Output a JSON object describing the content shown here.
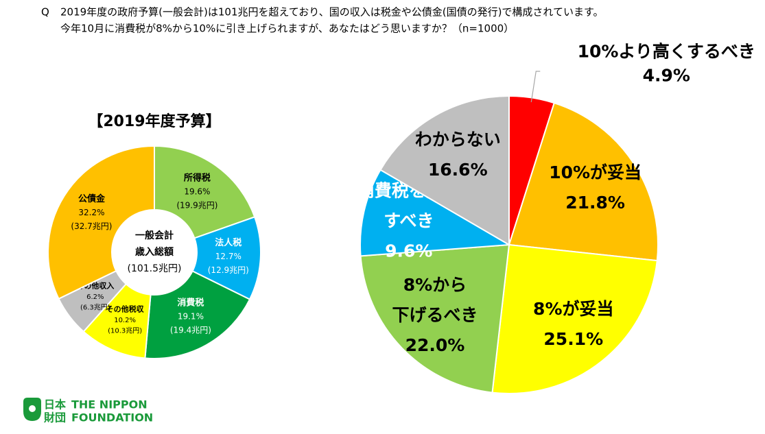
{
  "question": {
    "marker": "Q",
    "lines": [
      "2019年度の政府予算(一般会計)は101兆円を超えており、国の収入は税金や公債金(国債の発行)で構成されています。",
      "今年10月に消費税が8%から10%に引き上げられますが、あなたはどう思いますか？（n=1000）"
    ]
  },
  "chart_data": [
    {
      "type": "donut",
      "title": "【2019年度予算】",
      "center_lines": [
        "一般会計",
        "歳入総額",
        "(101.5兆円)"
      ],
      "categories": [
        [
          "所得税"
        ],
        [
          "法人税"
        ],
        [
          "消費税"
        ],
        [
          "その他税収"
        ],
        [
          "その他収入"
        ],
        [
          "公債金"
        ]
      ],
      "values": [
        19.6,
        12.7,
        19.1,
        10.2,
        6.2,
        32.2
      ],
      "value_labels": [
        "19.6%",
        "12.7%",
        "19.1%",
        "10.2%",
        "6.2%",
        "32.2%"
      ],
      "amount_labels": [
        "(19.9兆円)",
        "(12.9兆円)",
        "(19.4兆円)",
        "(10.3兆円)",
        "(6.3兆円)",
        "(32.7兆円)"
      ],
      "colors": [
        "#92d050",
        "#00b0f0",
        "#00a040",
        "#ffff00",
        "#bfbfbf",
        "#ffc000"
      ]
    },
    {
      "type": "pie",
      "categories": [
        [
          "10%より高くするべき"
        ],
        [
          "10%が妥当"
        ],
        [
          "8%が妥当"
        ],
        [
          "8%から",
          "下げるべき"
        ],
        [
          "消費税を廃止",
          "すべき"
        ],
        [
          "わからない"
        ]
      ],
      "values": [
        4.9,
        21.8,
        25.1,
        22.0,
        9.6,
        16.6
      ],
      "value_labels": [
        "4.9%",
        "21.8%",
        "25.1%",
        "22.0%",
        "9.6%",
        "16.6%"
      ],
      "colors": [
        "#ff0000",
        "#ffc000",
        "#ffff00",
        "#92d050",
        "#00b0f0",
        "#bfbfbf"
      ]
    }
  ],
  "logo": {
    "jp_top": "日本",
    "jp_bottom": "財団",
    "en_top": "THE NIPPON",
    "en_bottom": "FOUNDATION"
  }
}
